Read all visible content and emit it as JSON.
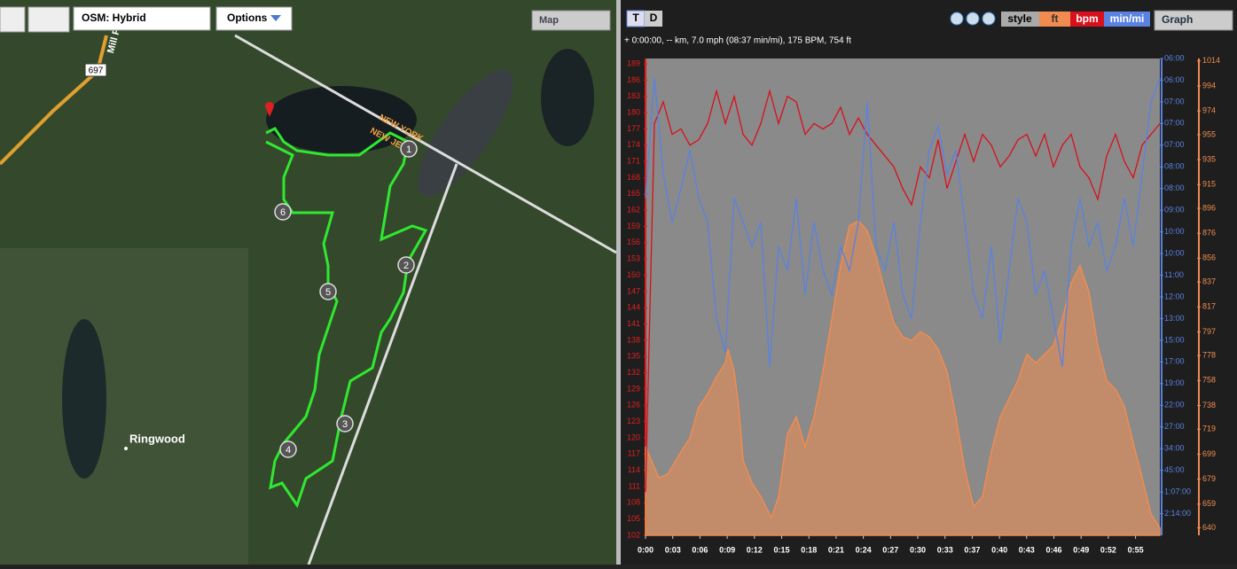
{
  "map_toolbar": {
    "layer": "OSM: Hybrid",
    "options": "Options",
    "map_button": "Map"
  },
  "map_labels": {
    "road": "697",
    "street": "Mill Po",
    "state_1": "NEW YORK",
    "state_2": "NEW JER",
    "town": "Ringwood",
    "waypoints": [
      "1",
      "2",
      "3",
      "4",
      "5",
      "6"
    ]
  },
  "graph_toolbar": {
    "tabs": [
      "T",
      "D"
    ],
    "style": "style",
    "view": "Graph"
  },
  "status": "+ 0:00:00, -- km, 7.0 mph (08:37 min/mi), 175 BPM, 754 ft",
  "chart_data": {
    "type": "line",
    "xlim": [
      0,
      58
    ],
    "xticks": [
      {
        "value": 0,
        "label": "0:00"
      },
      {
        "value": 3.07,
        "label": "0:03"
      },
      {
        "value": 6.14,
        "label": "0:06"
      },
      {
        "value": 9.21,
        "label": "0:09"
      },
      {
        "value": 12.28,
        "label": "0:12"
      },
      {
        "value": 15.35,
        "label": "0:15"
      },
      {
        "value": 18.42,
        "label": "0:18"
      },
      {
        "value": 21.49,
        "label": "0:21"
      },
      {
        "value": 24.56,
        "label": "0:24"
      },
      {
        "value": 27.63,
        "label": "0:27"
      },
      {
        "value": 30.7,
        "label": "0:30"
      },
      {
        "value": 33.77,
        "label": "0:33"
      },
      {
        "value": 36.84,
        "label": "0:37"
      },
      {
        "value": 39.91,
        "label": "0:40"
      },
      {
        "value": 42.98,
        "label": "0:43"
      },
      {
        "value": 46.05,
        "label": "0:46"
      },
      {
        "value": 49.12,
        "label": "0:49"
      },
      {
        "value": 52.19,
        "label": "0:52"
      },
      {
        "value": 55.26,
        "label": "0:55"
      }
    ],
    "ylim": [
      102,
      190
    ],
    "yticks": [
      189,
      186,
      183,
      180,
      177,
      174,
      171,
      168,
      165,
      162,
      159,
      156,
      153,
      150,
      147,
      144,
      141,
      138,
      135,
      132,
      129,
      126,
      123,
      120,
      117,
      114,
      111,
      108,
      105,
      102
    ],
    "y2lim": [
      0,
      9.9
    ],
    "y2ticks": [
      {
        "value": 9.9,
        "label": "06:00"
      },
      {
        "value": 9.45,
        "label": "06:00"
      },
      {
        "value": 9.0,
        "label": "07:00"
      },
      {
        "value": 8.55,
        "label": "07:00"
      },
      {
        "value": 8.1,
        "label": "07:00"
      },
      {
        "value": 7.65,
        "label": "08:00"
      },
      {
        "value": 7.2,
        "label": "08:00"
      },
      {
        "value": 6.75,
        "label": "09:00"
      },
      {
        "value": 6.3,
        "label": "10:00"
      },
      {
        "value": 5.85,
        "label": "10:00"
      },
      {
        "value": 5.4,
        "label": "11:00"
      },
      {
        "value": 4.95,
        "label": "12:00"
      },
      {
        "value": 4.5,
        "label": "13:00"
      },
      {
        "value": 4.05,
        "label": "15:00"
      },
      {
        "value": 3.6,
        "label": "17:00"
      },
      {
        "value": 3.15,
        "label": "19:00"
      },
      {
        "value": 2.7,
        "label": "22:00"
      },
      {
        "value": 2.25,
        "label": "27:00"
      },
      {
        "value": 1.8,
        "label": "34:00"
      },
      {
        "value": 1.35,
        "label": "45:00"
      },
      {
        "value": 0.9,
        "label": "1:07:00"
      },
      {
        "value": 0.45,
        "label": "2:14:00"
      }
    ],
    "y3lim": [
      634,
      1016
    ],
    "y3ticks": [
      1014,
      994,
      974,
      955,
      935,
      915,
      896,
      876,
      856,
      837,
      817,
      797,
      778,
      758,
      738,
      719,
      699,
      679,
      659,
      640
    ],
    "series": [
      {
        "name": "ft",
        "color": "#f08c50",
        "axis": "y3",
        "type": "area",
        "x": [
          0,
          1.5,
          2.5,
          4,
          5,
          6,
          7,
          8,
          9,
          9.3,
          10,
          10.5,
          11,
          12,
          13,
          14.2,
          15,
          16,
          17,
          18,
          19,
          20,
          21,
          22,
          23,
          24,
          25,
          26,
          27,
          28,
          29,
          30,
          31,
          32,
          33,
          34,
          35,
          36,
          37,
          38,
          39,
          40,
          42,
          43,
          44,
          45,
          46,
          47,
          48,
          49,
          50,
          51,
          52,
          53,
          54,
          55,
          56,
          57,
          58
        ],
        "values": [
          705,
          680,
          683,
          701,
          712,
          737,
          747,
          761,
          772,
          783,
          765,
          737,
          694,
          676,
          665,
          648,
          665,
          715,
          729,
          705,
          729,
          765,
          807,
          850,
          882,
          886,
          878,
          857,
          829,
          804,
          793,
          790,
          797,
          793,
          783,
          765,
          729,
          687,
          657,
          665,
          701,
          729,
          758,
          779,
          772,
          779,
          786,
          807,
          836,
          850,
          829,
          786,
          758,
          751,
          737,
          708,
          680,
          651,
          640
        ]
      },
      {
        "name": "bpm",
        "color": "#d8101c",
        "axis": "y",
        "type": "line",
        "x": [
          0,
          1,
          2,
          3,
          4,
          5,
          6,
          7,
          8,
          9,
          10,
          11,
          12,
          13,
          14,
          15,
          16,
          17,
          18,
          19,
          20,
          21,
          22,
          23,
          24,
          25,
          26,
          27,
          28,
          29,
          30,
          31,
          32,
          33,
          34,
          35,
          36,
          37,
          38,
          39,
          40,
          41,
          42,
          43,
          44,
          45,
          46,
          47,
          48,
          49,
          50,
          51,
          52,
          53,
          54,
          55,
          56,
          57,
          58
        ],
        "values": [
          110,
          178,
          182,
          176,
          177,
          174,
          175,
          178,
          184,
          178,
          183,
          176,
          174,
          178,
          184,
          178,
          183,
          182,
          176,
          178,
          177,
          178,
          181,
          176,
          179,
          176,
          174,
          172,
          170,
          166,
          163,
          170,
          168,
          175,
          166,
          171,
          176,
          171,
          176,
          174,
          170,
          172,
          175,
          176,
          172,
          176,
          170,
          174,
          176,
          170,
          168,
          164,
          172,
          176,
          171,
          168,
          174,
          176,
          178
        ]
      },
      {
        "name": "min/mi",
        "color": "#5a82e0",
        "axis": "y2",
        "type": "line",
        "x": [
          0,
          1,
          2,
          3,
          4,
          5,
          6,
          7,
          8,
          9,
          10,
          11,
          12,
          13,
          14,
          15,
          16,
          17,
          18,
          19,
          20,
          21,
          22,
          23,
          24,
          25,
          26,
          27,
          28,
          29,
          30,
          31,
          32,
          33,
          34,
          35,
          36,
          37,
          38,
          39,
          40,
          41,
          42,
          43,
          44,
          45,
          46,
          47,
          48,
          49,
          50,
          51,
          52,
          53,
          54,
          55,
          56,
          57,
          58
        ],
        "values": [
          7,
          9.5,
          7.5,
          6.5,
          7.2,
          8,
          7,
          6.5,
          4.5,
          3.8,
          7,
          6.5,
          6,
          6.5,
          3.5,
          6,
          5.5,
          7,
          5,
          6.5,
          5.5,
          5,
          6,
          5.5,
          6.5,
          9,
          6,
          5.5,
          6.5,
          5,
          4.5,
          6.5,
          8,
          8.5,
          7.5,
          8,
          6.5,
          5,
          4.5,
          6,
          4,
          5.5,
          7,
          6.5,
          5,
          5.5,
          4.5,
          3.5,
          6,
          7,
          6,
          6.5,
          5.5,
          6,
          7,
          6,
          7.5,
          9,
          9.5
        ]
      }
    ]
  }
}
